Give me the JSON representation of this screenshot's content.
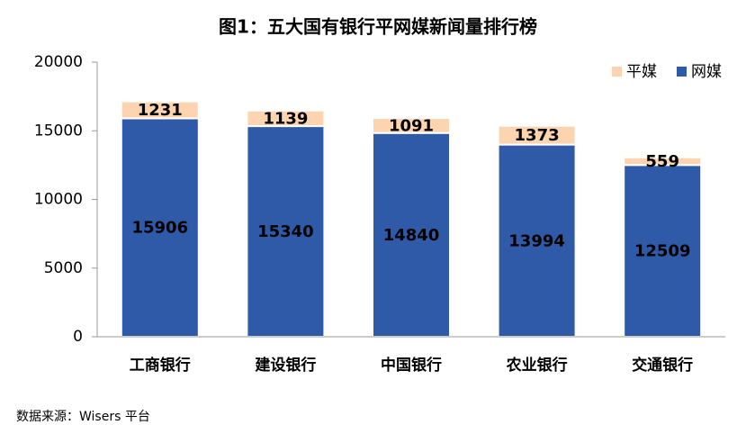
{
  "chart_data": {
    "type": "stacked-bar",
    "title": "图1：五大国有银行平网媒新闻量排行榜",
    "categories": [
      "工商银行",
      "建设银行",
      "中国银行",
      "农业银行",
      "交通银行"
    ],
    "series": [
      {
        "name": "网媒",
        "color": "#2f5aa8",
        "values": [
          15906,
          15340,
          14840,
          13994,
          12509
        ]
      },
      {
        "name": "平媒",
        "color": "#fcd5b0",
        "values": [
          1231,
          1139,
          1091,
          1373,
          559
        ]
      }
    ],
    "ylim": [
      0,
      20000
    ],
    "yticks": [
      0,
      5000,
      10000,
      15000,
      20000
    ],
    "grid": false,
    "legend": "top-right",
    "note": "数据来源：Wisers 平台"
  }
}
